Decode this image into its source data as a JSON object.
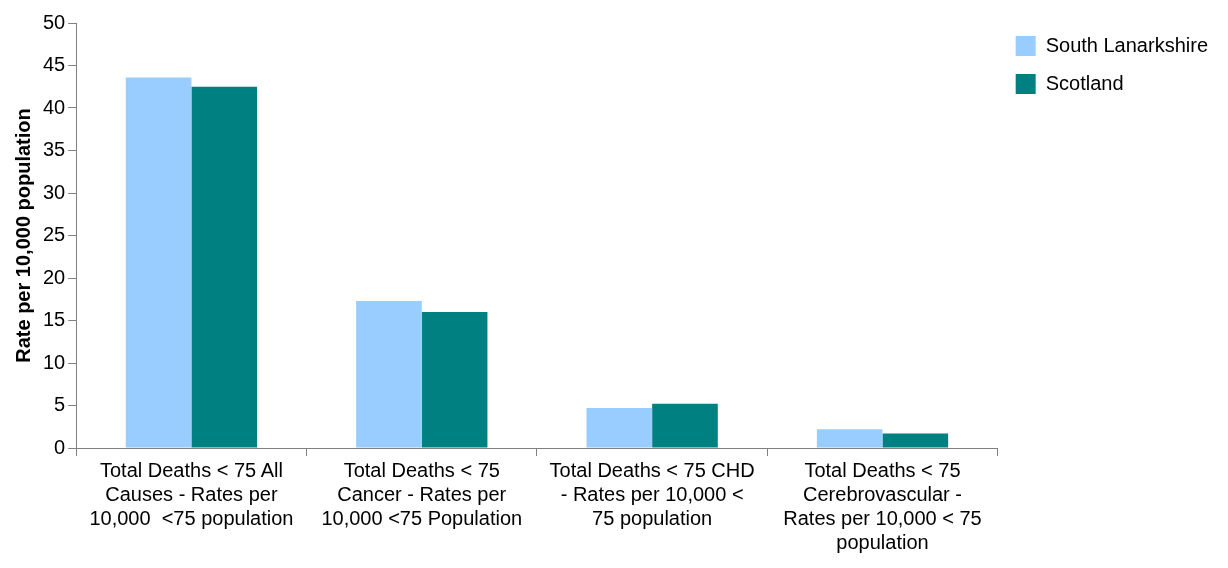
{
  "chart_data": {
    "type": "bar",
    "ylabel": "Rate per 10,000 population",
    "categories": [
      "Total Deaths < 75 All Causes - Rates per 10,000  <75 population",
      "Total Deaths < 75 Cancer - Rates per 10,000 <75 Population",
      "Total Deaths < 75 CHD - Rates per 10,000 < 75 population",
      "Total Deaths < 75 Cerebrovascular - Rates per 10,000 < 75 population"
    ],
    "series": [
      {
        "name": "South Lanarkshire",
        "color": "#99ccff",
        "values": [
          43.6,
          17.3,
          4.7,
          2.2
        ]
      },
      {
        "name": "Scotland",
        "color": "#008080",
        "values": [
          42.5,
          16.0,
          5.2,
          1.7
        ]
      }
    ],
    "ylim": [
      0,
      50
    ],
    "yticks": [
      0,
      5,
      10,
      15,
      20,
      25,
      30,
      35,
      40,
      45,
      50
    ],
    "grid": false,
    "legend": "top right"
  }
}
